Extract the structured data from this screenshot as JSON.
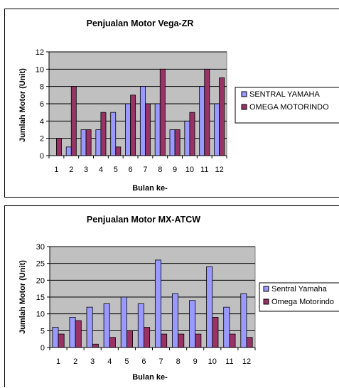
{
  "colors": {
    "series_a": "#9999ff",
    "series_b": "#993366",
    "plot_bg": "#c0c0c0",
    "grid": "#000000"
  },
  "chart_data": [
    {
      "type": "bar",
      "title": "Penjualan Motor Vega-ZR",
      "xlabel": "Bulan ke-",
      "ylabel": "Jumlah Motor (Unit)",
      "categories": [
        "1",
        "2",
        "3",
        "4",
        "5",
        "6",
        "7",
        "8",
        "9",
        "10",
        "11",
        "12"
      ],
      "ylim": [
        0,
        12
      ],
      "yticks": [
        0,
        2,
        4,
        6,
        8,
        10,
        12
      ],
      "grid": true,
      "legend_position": "right",
      "series": [
        {
          "name": "SENTRAL YAMAHA",
          "values": [
            0,
            1,
            3,
            3,
            5,
            6,
            8,
            6,
            3,
            4,
            8,
            6
          ]
        },
        {
          "name": "OMEGA MOTORINDO",
          "values": [
            2,
            8,
            3,
            5,
            1,
            7,
            6,
            10,
            3,
            5,
            10,
            9
          ]
        }
      ]
    },
    {
      "type": "bar",
      "title": "Penjualan Motor MX-ATCW",
      "xlabel": "Bulan ke-",
      "ylabel": "Jumlah Motor (Unit)",
      "categories": [
        "1",
        "2",
        "3",
        "4",
        "5",
        "6",
        "7",
        "8",
        "9",
        "10",
        "11",
        "12"
      ],
      "ylim": [
        0,
        30
      ],
      "yticks": [
        0,
        5,
        10,
        15,
        20,
        25,
        30
      ],
      "grid": true,
      "legend_position": "right",
      "series": [
        {
          "name": "Sentral Yamaha",
          "values": [
            6,
            9,
            12,
            13,
            15,
            13,
            26,
            16,
            14,
            24,
            12,
            16
          ]
        },
        {
          "name": "Omega Motorindo",
          "values": [
            4,
            8,
            1,
            3,
            5,
            6,
            4,
            4,
            4,
            9,
            4,
            3
          ]
        }
      ]
    }
  ]
}
